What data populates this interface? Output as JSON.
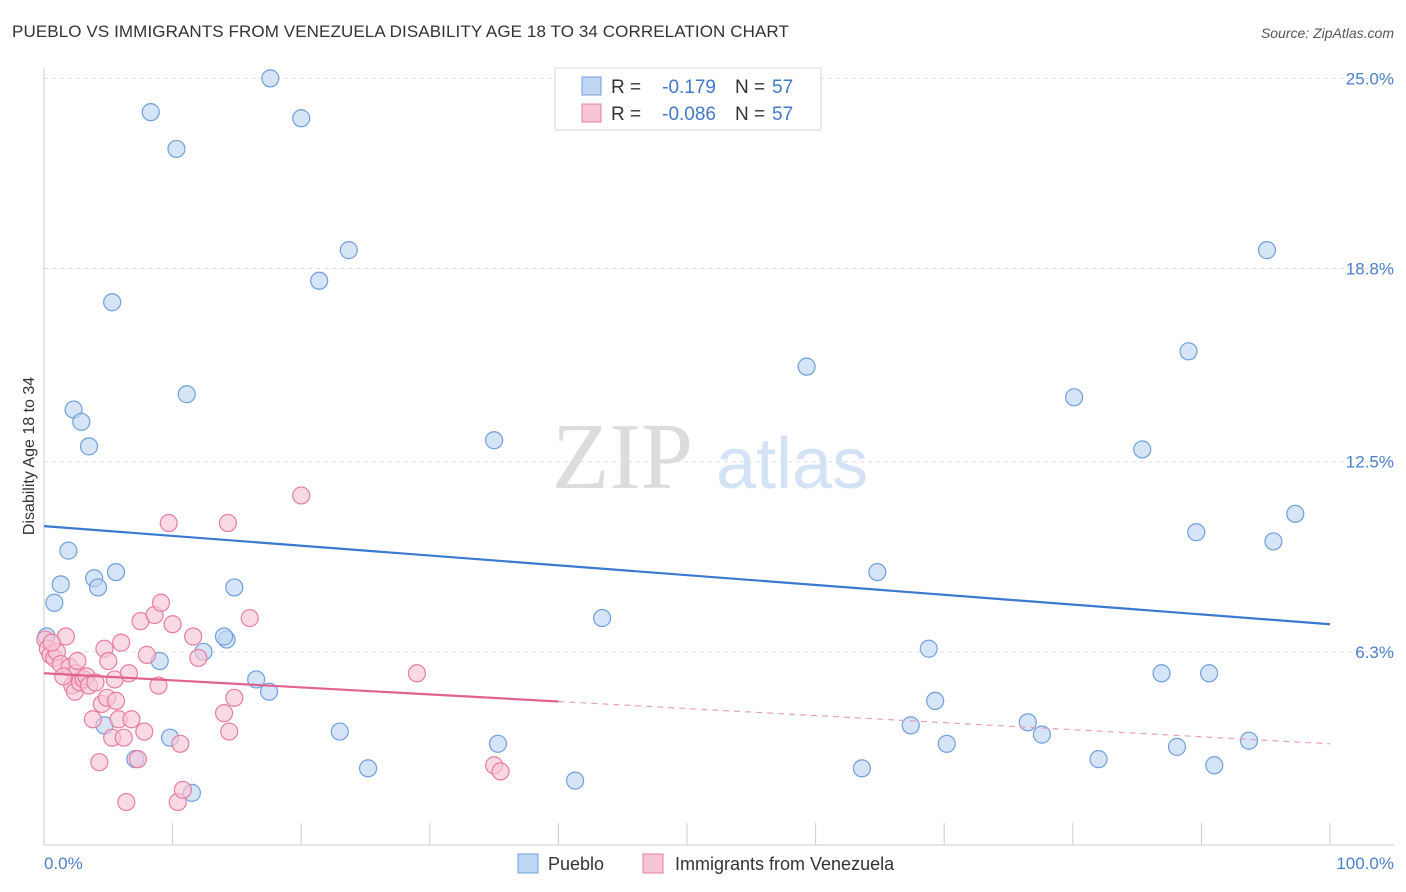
{
  "header": {
    "title": "PUEBLO VS IMMIGRANTS FROM VENEZUELA DISABILITY AGE 18 TO 34 CORRELATION CHART",
    "source": "Source: ZipAtlas.com"
  },
  "watermark": {
    "zip": "ZIP",
    "atlas": "atlas"
  },
  "chart_data": {
    "type": "scatter",
    "title": "PUEBLO VS IMMIGRANTS FROM VENEZUELA DISABILITY AGE 18 TO 34 CORRELATION CHART",
    "xlabel": "",
    "ylabel": "Disability Age 18 to 34",
    "xlim": [
      0,
      100
    ],
    "ylim": [
      0,
      25.6
    ],
    "x_tick_labels": [
      "0.0%",
      "100.0%"
    ],
    "y_ticks": [
      6.3,
      12.5,
      18.8,
      25.0
    ],
    "y_tick_labels": [
      "6.3%",
      "12.5%",
      "18.8%",
      "25.0%"
    ],
    "grid": true,
    "legend_position": "top-center",
    "stats": [
      {
        "r_label": "R =",
        "r_value": "-0.179",
        "n_label": "N =",
        "n_value": "57"
      },
      {
        "r_label": "R =",
        "r_value": "-0.086",
        "n_label": "N =",
        "n_value": "57"
      }
    ],
    "series": [
      {
        "name": "Pueblo",
        "color": "#6f9fdd",
        "fill": "#c0d6f3",
        "trend": {
          "x0": 0,
          "y0": 10.4,
          "x1": 100,
          "y1": 7.2,
          "x_solid_end": 100
        },
        "points": [
          [
            17.6,
            25.0
          ],
          [
            8.3,
            23.9
          ],
          [
            10.3,
            22.7
          ],
          [
            20.0,
            23.7
          ],
          [
            23.7,
            19.4
          ],
          [
            21.4,
            18.4
          ],
          [
            5.3,
            17.7
          ],
          [
            11.1,
            14.7
          ],
          [
            2.3,
            14.2
          ],
          [
            2.9,
            13.8
          ],
          [
            3.5,
            13.0
          ],
          [
            1.9,
            9.6
          ],
          [
            1.3,
            8.5
          ],
          [
            0.8,
            7.9
          ],
          [
            3.9,
            8.7
          ],
          [
            4.2,
            8.4
          ],
          [
            5.6,
            8.9
          ],
          [
            14.8,
            8.4
          ],
          [
            14.2,
            6.7
          ],
          [
            14.0,
            6.8
          ],
          [
            12.4,
            6.3
          ],
          [
            9.0,
            6.0
          ],
          [
            16.5,
            5.4
          ],
          [
            17.5,
            5.0
          ],
          [
            0.2,
            6.8
          ],
          [
            4.7,
            3.9
          ],
          [
            7.1,
            2.8
          ],
          [
            9.8,
            3.5
          ],
          [
            11.5,
            1.7
          ],
          [
            23.0,
            3.7
          ],
          [
            25.2,
            2.5
          ],
          [
            35.3,
            3.3
          ],
          [
            41.3,
            2.1
          ],
          [
            43.4,
            7.4
          ],
          [
            35.0,
            13.2
          ],
          [
            59.3,
            15.6
          ],
          [
            64.8,
            8.9
          ],
          [
            63.6,
            2.5
          ],
          [
            67.4,
            3.9
          ],
          [
            68.8,
            6.4
          ],
          [
            69.3,
            4.7
          ],
          [
            70.2,
            3.3
          ],
          [
            76.5,
            4.0
          ],
          [
            77.6,
            3.6
          ],
          [
            82.0,
            2.8
          ],
          [
            80.1,
            14.6
          ],
          [
            85.4,
            12.9
          ],
          [
            86.9,
            5.6
          ],
          [
            88.1,
            3.2
          ],
          [
            89.0,
            16.1
          ],
          [
            89.6,
            10.2
          ],
          [
            90.6,
            5.6
          ],
          [
            91.0,
            2.6
          ],
          [
            93.7,
            3.4
          ],
          [
            95.1,
            19.4
          ],
          [
            95.6,
            9.9
          ],
          [
            97.3,
            10.8
          ]
        ]
      },
      {
        "name": "Immigrants from Venezuela",
        "color": "#e87ca1",
        "fill": "#f6c6d6",
        "trend": {
          "x0": 0,
          "y0": 5.6,
          "x1": 100,
          "y1": 3.3,
          "x_solid_end": 40
        },
        "points": [
          [
            0.1,
            6.7
          ],
          [
            0.3,
            6.4
          ],
          [
            0.5,
            6.2
          ],
          [
            0.8,
            6.1
          ],
          [
            1.0,
            6.3
          ],
          [
            1.3,
            5.9
          ],
          [
            1.7,
            6.8
          ],
          [
            2.0,
            5.8
          ],
          [
            2.2,
            5.2
          ],
          [
            2.5,
            5.6
          ],
          [
            2.4,
            5.0
          ],
          [
            2.8,
            5.3
          ],
          [
            3.1,
            5.4
          ],
          [
            3.3,
            5.5
          ],
          [
            3.5,
            5.2
          ],
          [
            3.8,
            4.1
          ],
          [
            4.0,
            5.3
          ],
          [
            4.3,
            2.7
          ],
          [
            4.5,
            4.6
          ],
          [
            4.7,
            6.4
          ],
          [
            4.9,
            4.8
          ],
          [
            5.0,
            6.0
          ],
          [
            5.3,
            3.5
          ],
          [
            5.5,
            5.4
          ],
          [
            5.6,
            4.7
          ],
          [
            5.8,
            4.1
          ],
          [
            6.0,
            6.6
          ],
          [
            6.2,
            3.5
          ],
          [
            6.4,
            1.4
          ],
          [
            6.6,
            5.6
          ],
          [
            6.8,
            4.1
          ],
          [
            7.3,
            2.8
          ],
          [
            7.5,
            7.3
          ],
          [
            7.8,
            3.7
          ],
          [
            8.0,
            6.2
          ],
          [
            8.6,
            7.5
          ],
          [
            8.9,
            5.2
          ],
          [
            9.1,
            7.9
          ],
          [
            9.7,
            10.5
          ],
          [
            10.0,
            7.2
          ],
          [
            10.4,
            1.4
          ],
          [
            10.6,
            3.3
          ],
          [
            10.8,
            1.8
          ],
          [
            11.6,
            6.8
          ],
          [
            14.0,
            4.3
          ],
          [
            14.3,
            10.5
          ],
          [
            14.4,
            3.7
          ],
          [
            14.8,
            4.8
          ],
          [
            16.0,
            7.4
          ],
          [
            20.0,
            11.4
          ],
          [
            29.0,
            5.6
          ],
          [
            35.0,
            2.6
          ],
          [
            35.5,
            2.4
          ],
          [
            0.6,
            6.6
          ],
          [
            1.5,
            5.5
          ],
          [
            2.6,
            6.0
          ],
          [
            12.0,
            6.1
          ]
        ]
      }
    ]
  }
}
